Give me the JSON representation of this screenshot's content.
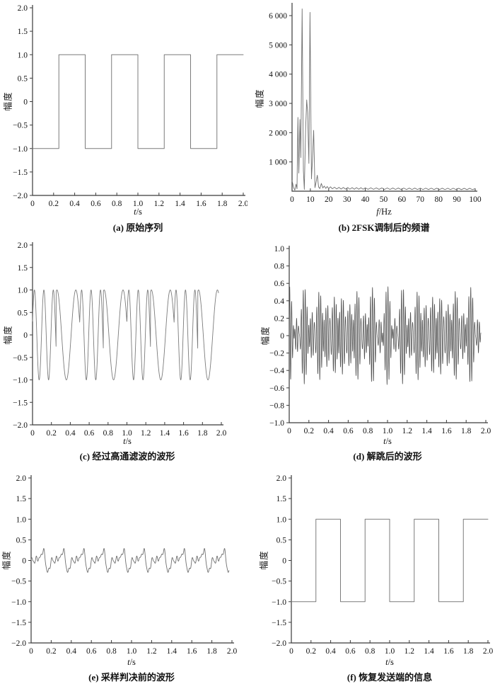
{
  "figure_bg": "#ffffff",
  "axis_color": "#3a3a3a",
  "chart_data": [
    {
      "id": "a",
      "type": "line",
      "caption": "(a) 原始序列",
      "ylabel": "幅度",
      "xlabel_var": "t",
      "xlabel_unit": "/s",
      "xlim": [
        0,
        2
      ],
      "ylim": [
        -2,
        2
      ],
      "xticks": {
        "values": [
          0,
          0.2,
          0.4,
          0.6,
          0.8,
          1.0,
          1.2,
          1.4,
          1.6,
          1.8,
          2.0
        ],
        "labels": [
          "0",
          "0.2",
          "0.4",
          "0.6",
          "0.8",
          "1.0",
          "1.2",
          "1.4",
          "1.6",
          "1.8",
          "2.0"
        ]
      },
      "yticks": {
        "values": [
          -2,
          -1.5,
          -1,
          -0.5,
          0,
          0.5,
          1,
          1.5,
          2
        ],
        "labels": [
          "−2.0",
          "−1.5",
          "−1.0",
          "−0.5",
          "0",
          "0.5",
          "1.0",
          "1.5",
          "2.0"
        ]
      },
      "line_color": "#7b7b7b",
      "line_width": 1.0,
      "signal": {
        "kind": "square",
        "bit_duration": 0.25,
        "levels": [
          -1,
          1,
          -1,
          1,
          -1,
          1,
          -1,
          1
        ]
      }
    },
    {
      "id": "b",
      "type": "line",
      "caption": "(b) 2FSK调制后的频谱",
      "ylabel": "幅度",
      "xlabel_var": "f",
      "xlabel_unit": "/Hz",
      "xlim": [
        0,
        100
      ],
      "ylim": [
        0,
        6340
      ],
      "xticks": {
        "values": [
          0,
          10,
          20,
          30,
          40,
          50,
          60,
          70,
          80,
          90,
          100
        ],
        "labels": [
          "0",
          "10",
          "20",
          "30",
          "40",
          "50",
          "60",
          "70",
          "80",
          "90",
          "100"
        ]
      },
      "yticks": {
        "values": [
          1000,
          2000,
          3000,
          4000,
          5000,
          6000
        ],
        "labels": [
          "1 000",
          "2 000",
          "3 000",
          "4 000",
          "5 000",
          "6 000"
        ]
      },
      "line_color": "#6f6f6f",
      "line_width": 0.9,
      "signal": {
        "kind": "points",
        "points": [
          [
            0,
            360
          ],
          [
            0.8,
            130
          ],
          [
            1.5,
            35
          ],
          [
            2.2,
            240
          ],
          [
            2.7,
            80
          ],
          [
            3.2,
            2520
          ],
          [
            3.7,
            620
          ],
          [
            4.3,
            2450
          ],
          [
            4.8,
            1150
          ],
          [
            5.5,
            6230
          ],
          [
            6.2,
            700
          ],
          [
            6.7,
            60
          ],
          [
            7.4,
            2100
          ],
          [
            8.0,
            3120
          ],
          [
            8.5,
            2680
          ],
          [
            9.2,
            950
          ],
          [
            9.8,
            6110
          ],
          [
            10.6,
            420
          ],
          [
            11.2,
            1150
          ],
          [
            11.8,
            2080
          ],
          [
            12.5,
            120
          ],
          [
            13.1,
            300
          ],
          [
            13.8,
            545
          ],
          [
            14.5,
            140
          ],
          [
            15.2,
            90
          ],
          [
            16.0,
            265
          ],
          [
            16.8,
            110
          ],
          [
            17.6,
            175
          ],
          [
            18.4,
            95
          ],
          [
            19.2,
            160
          ],
          [
            20.0,
            85
          ],
          [
            21.0,
            150
          ],
          [
            22.0,
            80
          ],
          [
            23.2,
            135
          ],
          [
            24.4,
            75
          ],
          [
            25.6,
            130
          ],
          [
            26.8,
            72
          ],
          [
            28.0,
            128
          ],
          [
            29.2,
            70
          ],
          [
            30.4,
            125
          ],
          [
            31.6,
            68
          ],
          [
            32.8,
            122
          ],
          [
            34.0,
            67
          ],
          [
            35.2,
            120
          ],
          [
            36.4,
            66
          ],
          [
            37.6,
            118
          ],
          [
            38.8,
            65
          ],
          [
            40.0,
            116
          ],
          [
            41.5,
            64
          ],
          [
            43.0,
            114
          ],
          [
            44.5,
            63
          ],
          [
            46.0,
            112
          ],
          [
            47.5,
            62
          ],
          [
            49.0,
            110
          ],
          [
            50.5,
            61
          ],
          [
            52.0,
            109
          ],
          [
            53.5,
            60
          ],
          [
            55.0,
            108
          ],
          [
            56.5,
            60
          ],
          [
            58.0,
            107
          ],
          [
            59.5,
            59
          ],
          [
            61.0,
            106
          ],
          [
            62.5,
            58
          ],
          [
            64.0,
            105
          ],
          [
            65.5,
            58
          ],
          [
            67.0,
            104
          ],
          [
            68.5,
            57
          ],
          [
            70.0,
            103
          ],
          [
            71.5,
            57
          ],
          [
            73.0,
            102
          ],
          [
            74.5,
            56
          ],
          [
            76.0,
            102
          ],
          [
            77.5,
            56
          ],
          [
            79.0,
            101
          ],
          [
            80.5,
            55
          ],
          [
            82.0,
            101
          ],
          [
            83.5,
            55
          ],
          [
            85.0,
            100
          ],
          [
            86.5,
            54
          ],
          [
            88.0,
            100
          ],
          [
            89.5,
            54
          ],
          [
            91.0,
            99
          ],
          [
            92.5,
            53
          ],
          [
            94.0,
            99
          ],
          [
            95.5,
            53
          ],
          [
            97.0,
            98
          ],
          [
            98.5,
            52
          ],
          [
            100,
            90
          ]
        ]
      }
    },
    {
      "id": "c",
      "type": "line",
      "caption": "(c) 经过高通滤波的波形",
      "ylabel": "幅度",
      "xlabel_var": "t",
      "xlabel_unit": "/s",
      "xlim": [
        0,
        2
      ],
      "ylim": [
        -2,
        2
      ],
      "xticks": {
        "values": [
          0,
          0.2,
          0.4,
          0.6,
          0.8,
          1.0,
          1.2,
          1.4,
          1.6,
          1.8,
          2.0
        ],
        "labels": [
          "0",
          "0.2",
          "0.4",
          "0.6",
          "0.8",
          "1.0",
          "1.2",
          "1.4",
          "1.6",
          "1.8",
          "2.0"
        ]
      },
      "yticks": {
        "values": [
          -2,
          -1.5,
          -1,
          -0.5,
          0,
          0.5,
          1,
          1.5,
          2
        ],
        "labels": [
          "−2.0",
          "−1.5",
          "−1.0",
          "−0.5",
          "0",
          "0.5",
          "1.0",
          "1.5",
          "2.0"
        ]
      },
      "line_color": "#7b7b7b",
      "line_width": 0.9,
      "signal": {
        "kind": "fsk",
        "bit_duration": 0.25,
        "t_end": 1.97,
        "samples": 1700,
        "segments": [
          {
            "f": 10,
            "ph": 0.31
          },
          {
            "f": 5,
            "ph": 1.3
          },
          {
            "f": 10,
            "ph": 0.31
          },
          {
            "f": 5,
            "ph": 1.3
          },
          {
            "f": 10,
            "ph": 0.31
          },
          {
            "f": 5,
            "ph": 1.3
          },
          {
            "f": 10,
            "ph": 0.31
          },
          {
            "f": 5,
            "ph": 1.3
          }
        ]
      }
    },
    {
      "id": "d",
      "type": "line",
      "caption": "(d) 解跳后的波形",
      "ylabel": "幅度",
      "xlabel_var": "t",
      "xlabel_unit": "/s",
      "xlim": [
        0,
        2
      ],
      "ylim": [
        -1,
        1
      ],
      "xticks": {
        "values": [
          0,
          0.2,
          0.4,
          0.6,
          0.8,
          1.0,
          1.2,
          1.4,
          1.6,
          1.8,
          2.0
        ],
        "labels": [
          "0",
          "0.2",
          "0.4",
          "0.6",
          "0.8",
          "1.0",
          "1.2",
          "1.4",
          "1.6",
          "1.8",
          "2.0"
        ]
      },
      "yticks": {
        "values": [
          -1,
          -0.8,
          -0.6,
          -0.4,
          -0.2,
          0,
          0.2,
          0.4,
          0.6,
          0.8,
          1
        ],
        "labels": [
          "−1.0",
          "−0.8",
          "−0.6",
          "−0.4",
          "−0.2",
          "0",
          "0.2",
          "0.4",
          "0.6",
          "0.8",
          "1.0"
        ]
      },
      "line_color": "#4d4d4d",
      "line_width": 0.75,
      "signal": {
        "kind": "tones",
        "t_end": 1.95,
        "samples": 2600,
        "freqs": [
          44,
          51,
          57
        ],
        "amps": [
          0.19,
          0.19,
          0.19
        ],
        "phases": [
          0,
          0,
          0
        ]
      }
    },
    {
      "id": "e",
      "type": "line",
      "caption": "(e) 采样判决前的波形",
      "ylabel": "幅度",
      "xlabel_var": "t",
      "xlabel_unit": "/s",
      "xlim": [
        0,
        2
      ],
      "ylim": [
        -2,
        2
      ],
      "xticks": {
        "values": [
          0,
          0.2,
          0.4,
          0.6,
          0.8,
          1.0,
          1.2,
          1.4,
          1.6,
          1.8,
          2.0
        ],
        "labels": [
          "0",
          "0.2",
          "0.4",
          "0.6",
          "0.8",
          "1.0",
          "1.2",
          "1.4",
          "1.6",
          "1.8",
          "2.0"
        ]
      },
      "yticks": {
        "values": [
          -2,
          -1.5,
          -1,
          -0.5,
          0,
          0.5,
          1,
          1.5,
          2
        ],
        "labels": [
          "−2.0",
          "−1.5",
          "−1.0",
          "−0.5",
          "0",
          "0.5",
          "1.0",
          "1.5",
          "2.0"
        ]
      },
      "line_color": "#6f6f6f",
      "line_width": 0.9,
      "signal": {
        "kind": "tones",
        "t_end": 1.97,
        "samples": 1400,
        "freqs": [
          5,
          10,
          15,
          25,
          40
        ],
        "amps": [
          0.14,
          0.12,
          0.07,
          0.05,
          0.03
        ],
        "phases": [
          -1.2,
          0.5,
          2.0,
          0,
          1.0
        ]
      }
    },
    {
      "id": "f",
      "type": "line",
      "caption": "(f) 恢复发送端的信息",
      "ylabel": "幅度",
      "xlabel_var": "t",
      "xlabel_unit": "/s",
      "xlim": [
        0,
        2
      ],
      "ylim": [
        -2,
        2
      ],
      "xticks": {
        "values": [
          0,
          0.2,
          0.4,
          0.6,
          0.8,
          1.0,
          1.2,
          1.4,
          1.6,
          1.8,
          2.0
        ],
        "labels": [
          "0",
          "0.2",
          "0.4",
          "0.6",
          "0.8",
          "1.0",
          "1.2",
          "1.4",
          "1.6",
          "1.8",
          "2.0"
        ]
      },
      "yticks": {
        "values": [
          -2,
          -1.5,
          -1,
          -0.5,
          0,
          0.5,
          1,
          1.5,
          2
        ],
        "labels": [
          "−2.0",
          "−1.5",
          "−1.0",
          "−0.5",
          "0",
          "0.5",
          "1.0",
          "1.5",
          "2.0"
        ]
      },
      "line_color": "#7b7b7b",
      "line_width": 1.0,
      "signal": {
        "kind": "square",
        "bit_duration": 0.25,
        "levels": [
          -1,
          1,
          -1,
          1,
          -1,
          1,
          -1,
          1
        ]
      }
    }
  ]
}
